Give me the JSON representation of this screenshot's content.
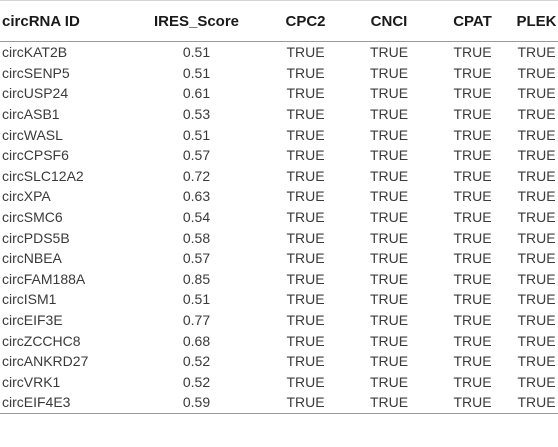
{
  "table": {
    "headers": [
      "circRNA ID",
      "IRES_Score",
      "CPC2",
      "CNCI",
      "CPAT",
      "PLEK"
    ],
    "rows": [
      [
        "circKAT2B",
        "0.51",
        "TRUE",
        "TRUE",
        "TRUE",
        "TRUE"
      ],
      [
        "circSENP5",
        "0.51",
        "TRUE",
        "TRUE",
        "TRUE",
        "TRUE"
      ],
      [
        "circUSP24",
        "0.61",
        "TRUE",
        "TRUE",
        "TRUE",
        "TRUE"
      ],
      [
        "circASB1",
        "0.53",
        "TRUE",
        "TRUE",
        "TRUE",
        "TRUE"
      ],
      [
        "circWASL",
        "0.51",
        "TRUE",
        "TRUE",
        "TRUE",
        "TRUE"
      ],
      [
        "circCPSF6",
        "0.57",
        "TRUE",
        "TRUE",
        "TRUE",
        "TRUE"
      ],
      [
        "circSLC12A2",
        "0.72",
        "TRUE",
        "TRUE",
        "TRUE",
        "TRUE"
      ],
      [
        "circXPA",
        "0.63",
        "TRUE",
        "TRUE",
        "TRUE",
        "TRUE"
      ],
      [
        "circSMC6",
        "0.54",
        "TRUE",
        "TRUE",
        "TRUE",
        "TRUE"
      ],
      [
        "circPDS5B",
        "0.58",
        "TRUE",
        "TRUE",
        "TRUE",
        "TRUE"
      ],
      [
        "circNBEA",
        "0.57",
        "TRUE",
        "TRUE",
        "TRUE",
        "TRUE"
      ],
      [
        "circFAM188A",
        "0.85",
        "TRUE",
        "TRUE",
        "TRUE",
        "TRUE"
      ],
      [
        "circISM1",
        "0.51",
        "TRUE",
        "TRUE",
        "TRUE",
        "TRUE"
      ],
      [
        "circEIF3E",
        "0.77",
        "TRUE",
        "TRUE",
        "TRUE",
        "TRUE"
      ],
      [
        "circZCCHC8",
        "0.68",
        "TRUE",
        "TRUE",
        "TRUE",
        "TRUE"
      ],
      [
        "circANKRD27",
        "0.52",
        "TRUE",
        "TRUE",
        "TRUE",
        "TRUE"
      ],
      [
        "circVRK1",
        "0.52",
        "TRUE",
        "TRUE",
        "TRUE",
        "TRUE"
      ],
      [
        "circEIF4E3",
        "0.59",
        "TRUE",
        "TRUE",
        "TRUE",
        "TRUE"
      ]
    ]
  }
}
